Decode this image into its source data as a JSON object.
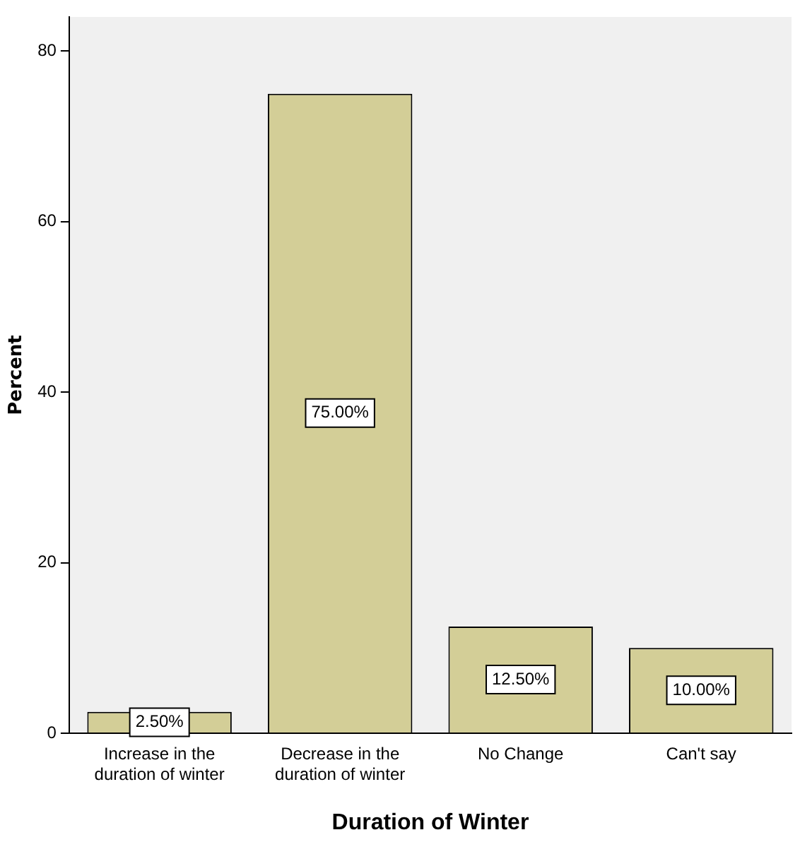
{
  "chart_data": {
    "type": "bar",
    "xlabel": "Duration of Winter",
    "ylabel": "Percent",
    "categories": [
      "Increase in the duration of winter",
      "Decrease in the duration of winter",
      "No Change",
      "Can't say"
    ],
    "values": [
      2.5,
      75,
      12.5,
      10
    ],
    "color": "#d3ce97",
    "value_labels": [
      "2.50%",
      "75.00%",
      "12.50%",
      "10.00%"
    ],
    "ylim": [
      0,
      84
    ],
    "yticks": [
      0,
      20,
      40,
      60,
      80
    ],
    "grid": false,
    "legend": false
  }
}
